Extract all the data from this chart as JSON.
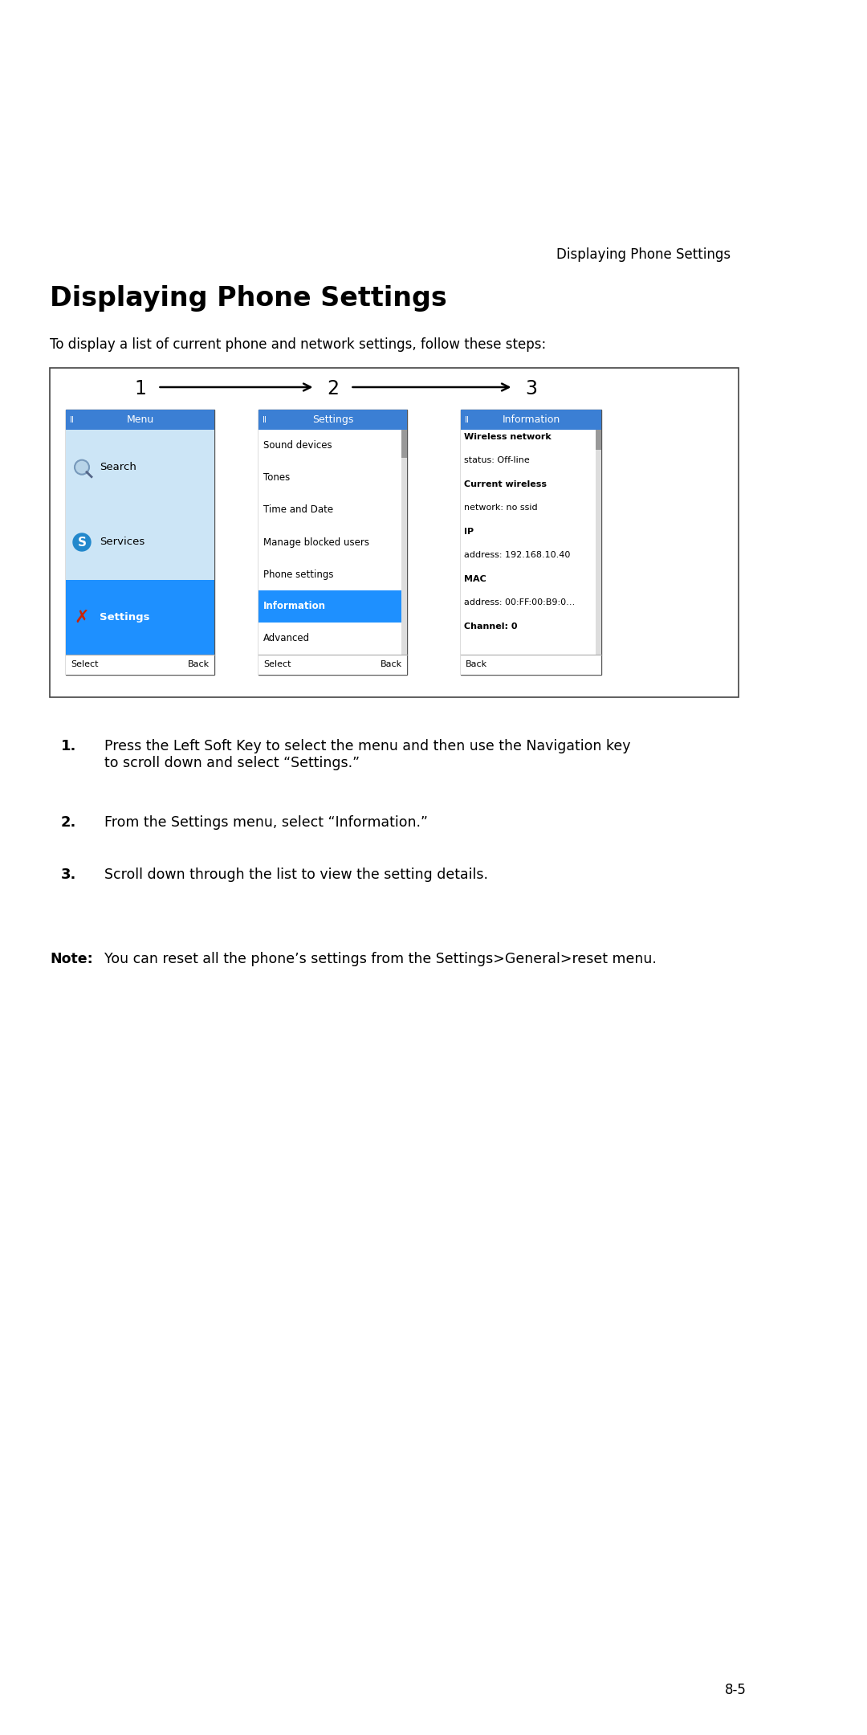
{
  "header_text": "Displaying Phone Settings",
  "title": "Displaying Phone Settings",
  "intro": "To display a list of current phone and network settings, follow these steps:",
  "screen1_header": "Menu",
  "screen1_items": [
    "Search",
    "Services",
    "Settings"
  ],
  "screen1_selected": "Settings",
  "screen2_header": "Settings",
  "screen2_items": [
    "Sound devices",
    "Tones",
    "Time and Date",
    "Manage blocked users",
    "Phone settings",
    "Information",
    "Advanced"
  ],
  "screen2_selected": "Information",
  "screen3_header": "Information",
  "screen3_content_bold": [
    "Wireless network",
    "Current wireless",
    "IP",
    "MAC",
    "Channel: 0"
  ],
  "screen3_content_normal": [
    "status: Off-line",
    "network: no ssid",
    "address: 192.168.10.40",
    "address: 00:FF:00:B9:0…"
  ],
  "screen3_lines": [
    [
      "bold",
      "Wireless network"
    ],
    [
      "normal",
      "status: Off-line"
    ],
    [
      "bold",
      "Current wireless"
    ],
    [
      "normal",
      "network: no ssid"
    ],
    [
      "bold",
      "IP"
    ],
    [
      "normal",
      "address: 192.168.10.40"
    ],
    [
      "bold",
      "MAC"
    ],
    [
      "normal",
      "address: 00:FF:00:B9:0…"
    ],
    [
      "bold",
      "Channel: 0"
    ]
  ],
  "step1": "Press the Left Soft Key to select the menu and then use the Navigation key\nto scroll down and select “Settings.”",
  "step2": "From the Settings menu, select “Information.”",
  "step3": "Scroll down through the list to view the setting details.",
  "note_label": "Note:",
  "note_text": "You can reset all the phone’s settings from the Settings>General>reset menu.",
  "page_number": "8-5",
  "header_blue": "#3b7fd4",
  "selected_blue": "#1e90ff",
  "light_blue_bg": "#cce5f6",
  "white": "#ffffff",
  "black": "#000000"
}
